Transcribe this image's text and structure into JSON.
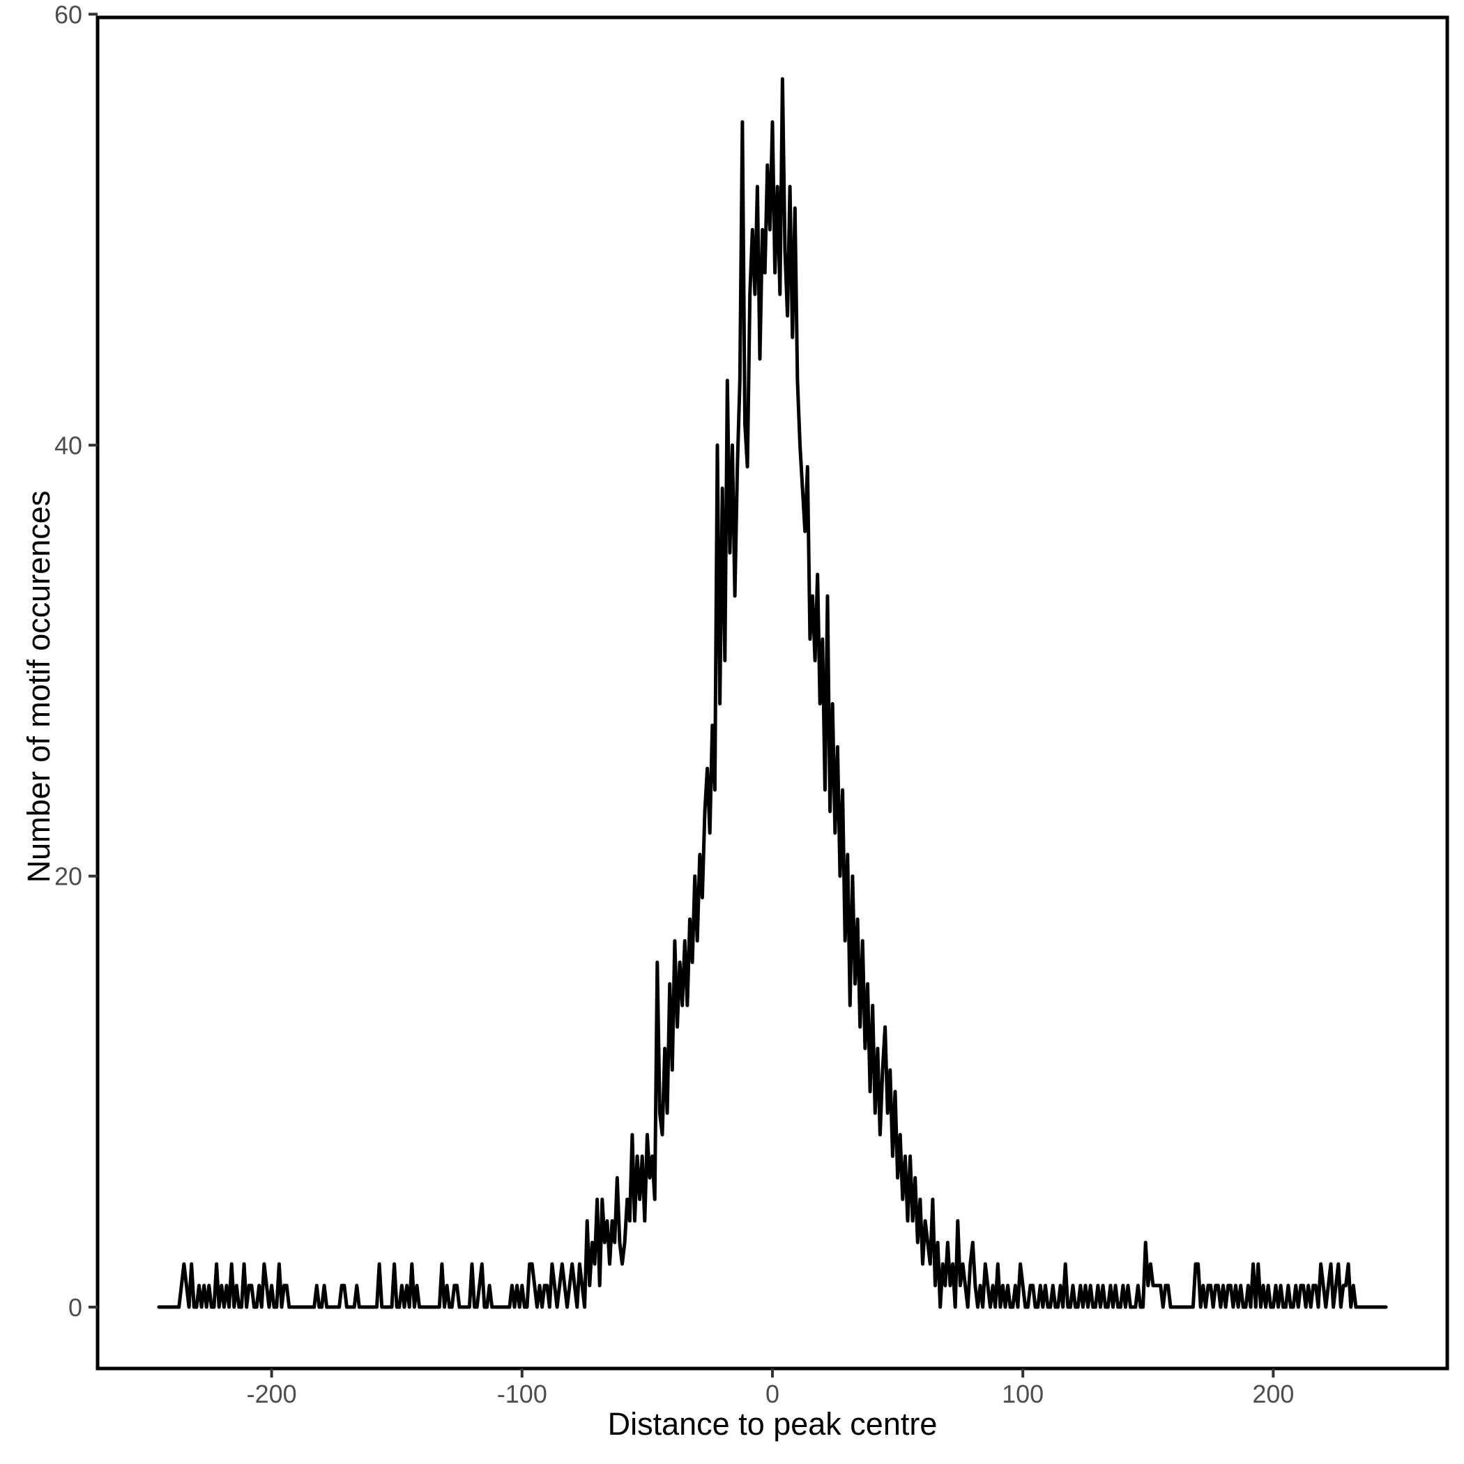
{
  "chart_data": {
    "type": "line",
    "title": "",
    "xlabel": "Distance to peak centre",
    "ylabel": "Number of motif occurences",
    "legend": "none",
    "grid": false,
    "line_color": "#000000",
    "axis_line_color": "#000000",
    "tick_color": "#333333",
    "axis_text_color": "#4d4d4d",
    "x_ticks": [
      -200,
      -100,
      0,
      100,
      200
    ],
    "y_ticks": [
      0,
      20,
      40,
      60
    ],
    "xlim": [
      -269.5,
      269.5
    ],
    "ylim": [
      -2.85,
      59.85
    ],
    "x_start": -245,
    "x_step": 1,
    "y_max": 57,
    "values": [
      0,
      0,
      0,
      0,
      0,
      0,
      0,
      0,
      0,
      1,
      2,
      1,
      0,
      2,
      0,
      0,
      1,
      0,
      1,
      0,
      1,
      0,
      0,
      2,
      0,
      1,
      0,
      1,
      0,
      2,
      0,
      1,
      0,
      0,
      2,
      0,
      1,
      1,
      0,
      0,
      1,
      0,
      2,
      1,
      0,
      1,
      0,
      0,
      2,
      0,
      1,
      1,
      0,
      0,
      0,
      0,
      0,
      0,
      0,
      0,
      0,
      0,
      0,
      1,
      0,
      0,
      1,
      0,
      0,
      0,
      0,
      0,
      0,
      1,
      1,
      0,
      0,
      0,
      0,
      1,
      0,
      0,
      0,
      0,
      0,
      0,
      0,
      0,
      2,
      0,
      0,
      0,
      0,
      0,
      2,
      0,
      0,
      1,
      0,
      1,
      0,
      2,
      0,
      1,
      0,
      0,
      0,
      0,
      0,
      0,
      0,
      0,
      0,
      2,
      0,
      1,
      0,
      0,
      1,
      1,
      0,
      0,
      0,
      0,
      0,
      2,
      0,
      0,
      1,
      2,
      0,
      0,
      1,
      0,
      0,
      0,
      0,
      0,
      0,
      0,
      0,
      1,
      0,
      1,
      0,
      1,
      0,
      0,
      2,
      2,
      1,
      0,
      1,
      0,
      1,
      1,
      0,
      2,
      1,
      0,
      1,
      2,
      1,
      0,
      1,
      2,
      1,
      0,
      2,
      1,
      0,
      4,
      1,
      3,
      2,
      5,
      1,
      5,
      3,
      4,
      2,
      4,
      3,
      6,
      3,
      2,
      3,
      5,
      4,
      8,
      4,
      7,
      5,
      7,
      4,
      8,
      6,
      7,
      5,
      16,
      9,
      8,
      12,
      9,
      15,
      11,
      17,
      13,
      16,
      14,
      17,
      14,
      18,
      16,
      20,
      17,
      21,
      19,
      23,
      25,
      22,
      27,
      24,
      40,
      28,
      38,
      30,
      43,
      35,
      40,
      33,
      39,
      43,
      55,
      41,
      39,
      47,
      50,
      47,
      52,
      44,
      50,
      48,
      53,
      50,
      55,
      48,
      52,
      47,
      57,
      49,
      46,
      52,
      45,
      51,
      43,
      40,
      38,
      36,
      39,
      31,
      33,
      30,
      34,
      28,
      31,
      24,
      33,
      23,
      28,
      22,
      26,
      20,
      24,
      17,
      21,
      14,
      20,
      15,
      18,
      13,
      17,
      12,
      15,
      10,
      14,
      9,
      12,
      8,
      11,
      13,
      9,
      11,
      7,
      10,
      6,
      8,
      5,
      7,
      4,
      7,
      4,
      6,
      3,
      5,
      2,
      4,
      3,
      2,
      5,
      1,
      3,
      0,
      2,
      1,
      3,
      1,
      2,
      0,
      4,
      1,
      2,
      1,
      0,
      2,
      3,
      1,
      0,
      1,
      0,
      2,
      1,
      0,
      1,
      0,
      2,
      0,
      1,
      0,
      1,
      0,
      0,
      1,
      0,
      2,
      1,
      0,
      0,
      1,
      1,
      0,
      0,
      1,
      0,
      1,
      0,
      0,
      1,
      0,
      0,
      1,
      0,
      2,
      0,
      0,
      1,
      0,
      0,
      1,
      0,
      1,
      0,
      1,
      0,
      0,
      1,
      0,
      1,
      0,
      0,
      1,
      0,
      1,
      0,
      0,
      1,
      0,
      1,
      0,
      0,
      0,
      1,
      0,
      0,
      3,
      1,
      2,
      1,
      1,
      1,
      1,
      0,
      1,
      1,
      0,
      0,
      0,
      0,
      0,
      0,
      0,
      0,
      0,
      0,
      2,
      2,
      0,
      1,
      0,
      1,
      1,
      0,
      1,
      1,
      0,
      1,
      0,
      1,
      1,
      0,
      1,
      0,
      1,
      0,
      0,
      1,
      0,
      2,
      0,
      2,
      0,
      1,
      0,
      1,
      0,
      0,
      1,
      0,
      1,
      0,
      0,
      1,
      0,
      0,
      1,
      0,
      1,
      1,
      0,
      1,
      0,
      1,
      1,
      0,
      2,
      1,
      0,
      1,
      2,
      0,
      1,
      2,
      0,
      1,
      1,
      2,
      0,
      1,
      0,
      0,
      0,
      0,
      0,
      0,
      0,
      0,
      0,
      0,
      0,
      0,
      0
    ]
  }
}
